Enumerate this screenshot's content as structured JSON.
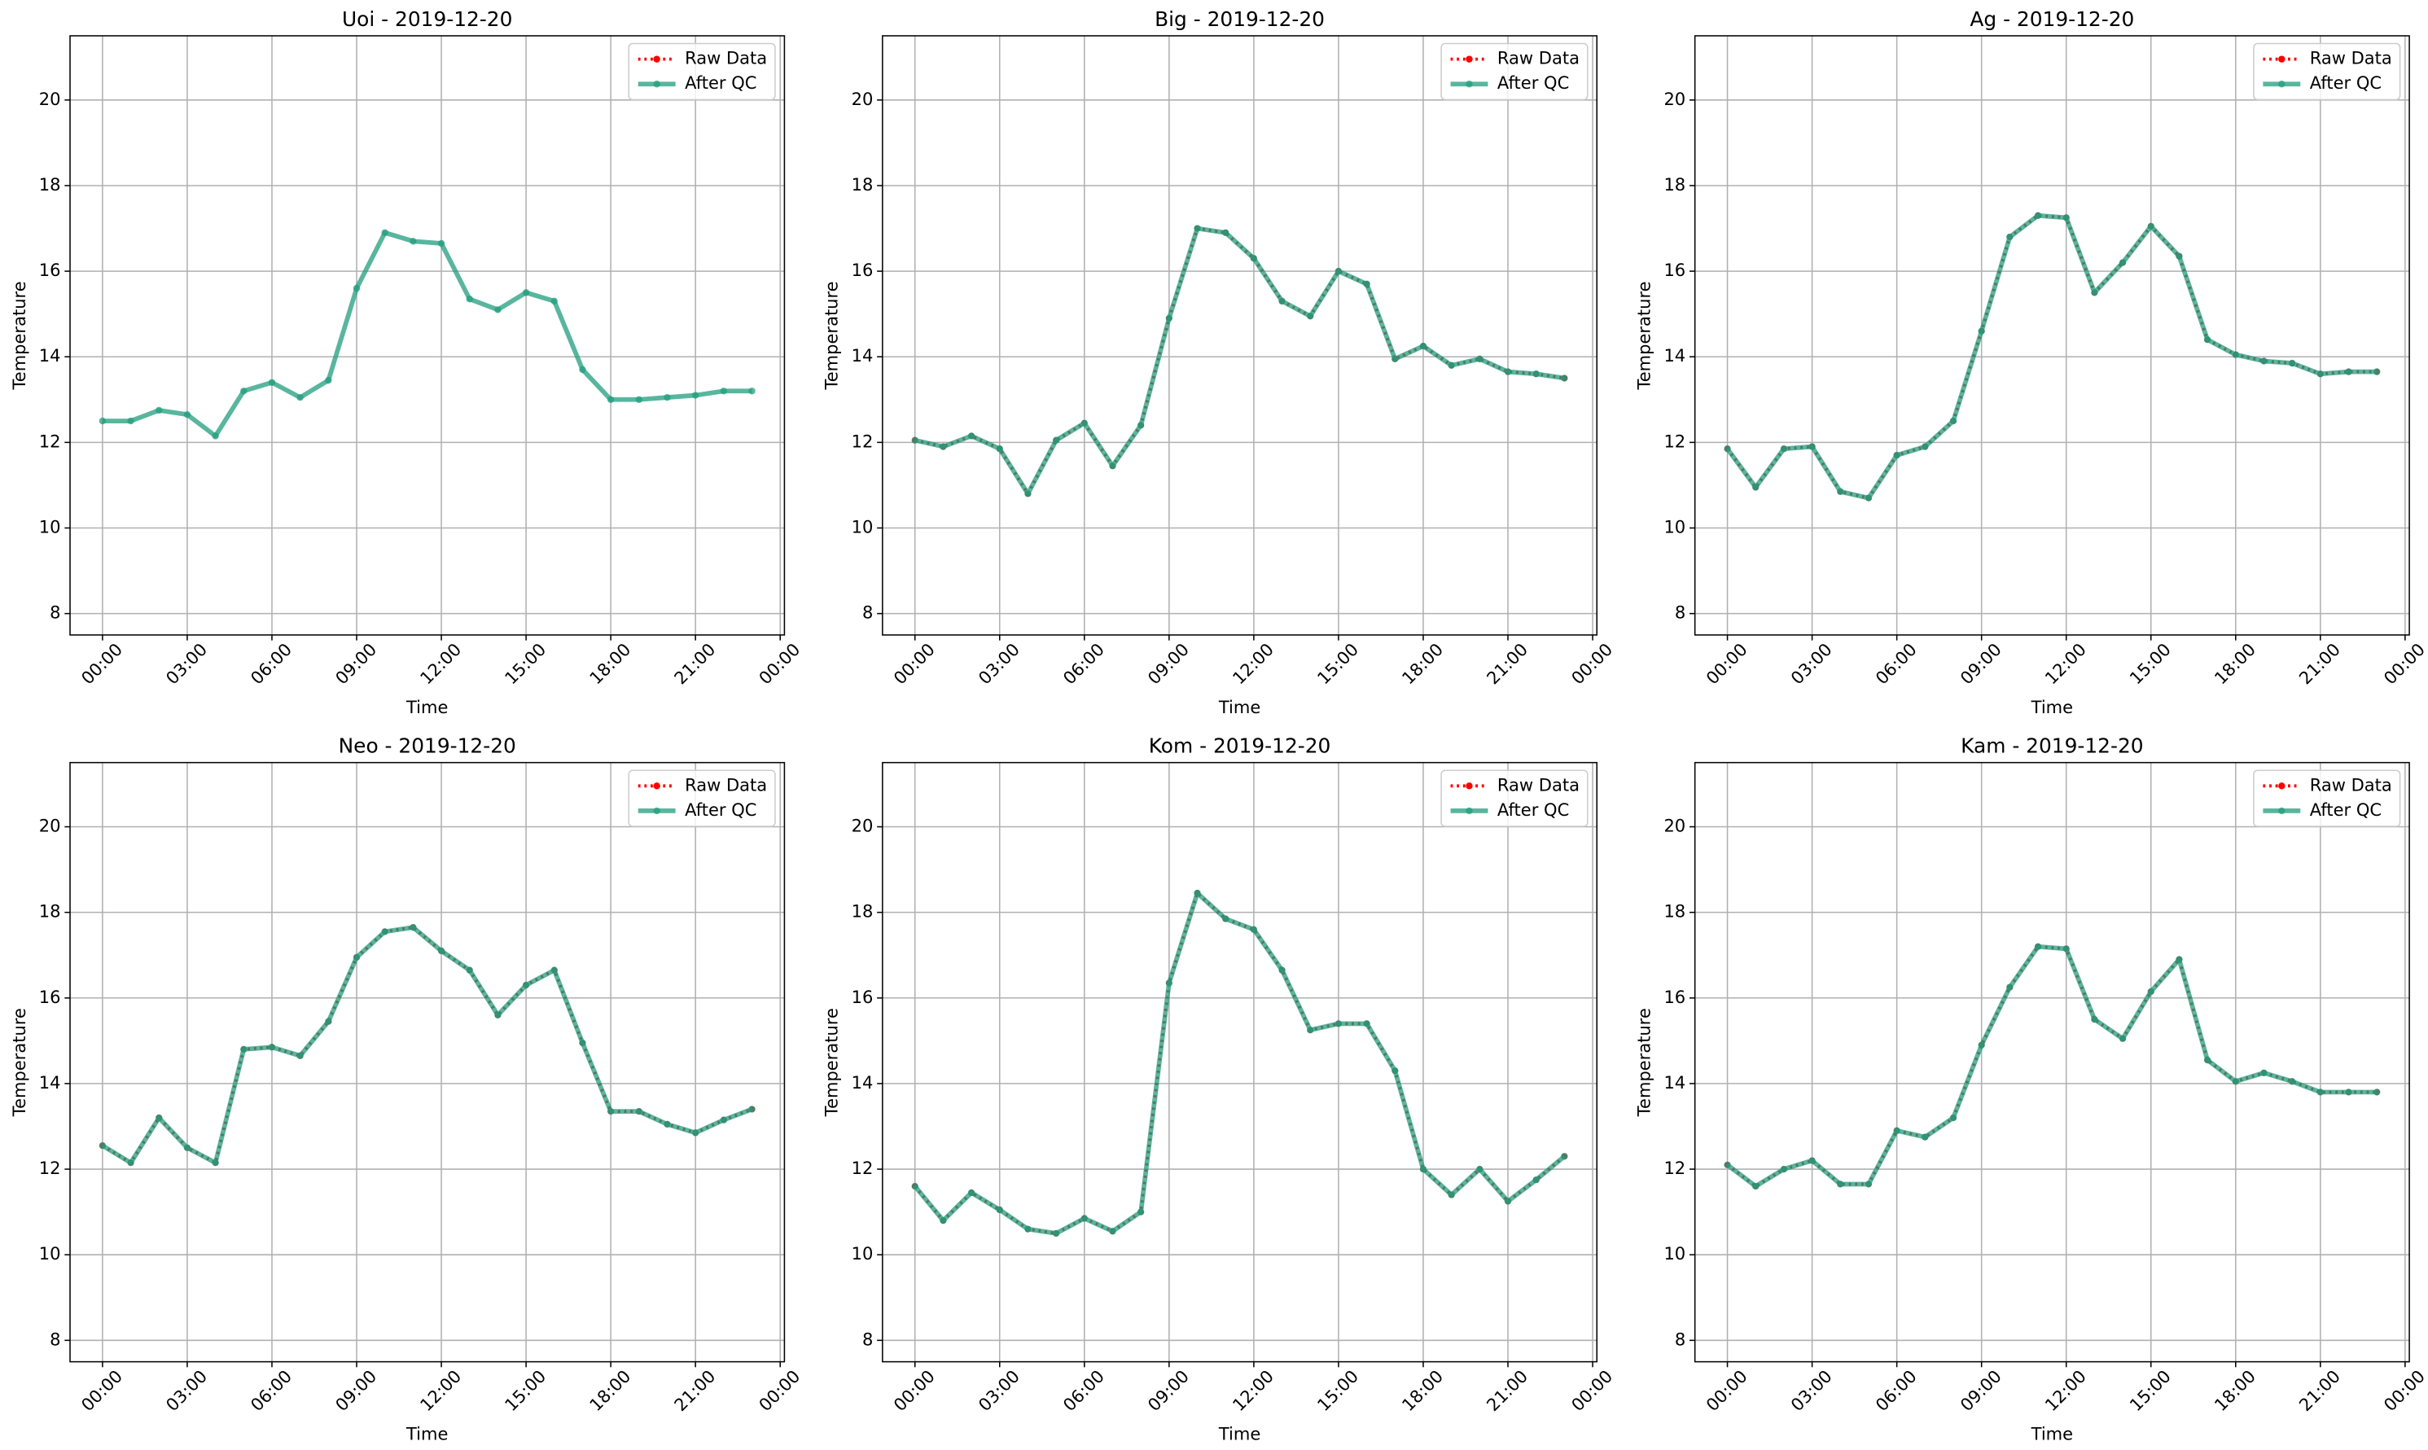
{
  "chart_data": [
    {
      "type": "line",
      "title": "Uoi - 2019-12-20",
      "xlabel": "Time",
      "ylabel": "Temperature",
      "x": [
        0,
        1,
        2,
        3,
        4,
        5,
        6,
        7,
        8,
        9,
        10,
        11,
        12,
        13,
        14,
        15,
        16,
        17,
        18,
        19,
        20,
        21,
        22,
        23
      ],
      "xlim": [
        -1.15,
        24.15
      ],
      "xticks": [
        {
          "value": 0,
          "label": "00:00"
        },
        {
          "value": 3,
          "label": "03:00"
        },
        {
          "value": 6,
          "label": "06:00"
        },
        {
          "value": 9,
          "label": "09:00"
        },
        {
          "value": 12,
          "label": "12:00"
        },
        {
          "value": 15,
          "label": "15:00"
        },
        {
          "value": 18,
          "label": "18:00"
        },
        {
          "value": 21,
          "label": "21:00"
        },
        {
          "value": 24,
          "label": "00:00"
        }
      ],
      "ylim": [
        7.5,
        21.5
      ],
      "yticks": [
        8,
        10,
        12,
        14,
        16,
        18,
        20
      ],
      "grid": true,
      "legend": "upper right",
      "series": [
        {
          "name": "Raw Data",
          "color": "#ff0000",
          "values": [
            null,
            null,
            null,
            null,
            null,
            null,
            null,
            null,
            null,
            null,
            null,
            null,
            null,
            null,
            null,
            null,
            null,
            null,
            null,
            null,
            null,
            null,
            null,
            null
          ]
        },
        {
          "name": "After QC",
          "color": "#229e7e",
          "values": [
            12.5,
            12.5,
            12.75,
            12.65,
            12.15,
            13.2,
            13.4,
            13.05,
            13.45,
            15.6,
            16.9,
            16.7,
            16.65,
            15.35,
            15.1,
            15.5,
            15.3,
            13.7,
            13.0,
            13.0,
            13.05,
            13.1,
            13.2,
            13.2
          ]
        }
      ]
    },
    {
      "type": "line",
      "title": "Big - 2019-12-20",
      "xlabel": "Time",
      "ylabel": "Temperature",
      "x": [
        0,
        1,
        2,
        3,
        4,
        5,
        6,
        7,
        8,
        9,
        10,
        11,
        12,
        13,
        14,
        15,
        16,
        17,
        18,
        19,
        20,
        21,
        22,
        23
      ],
      "xlim": [
        -1.15,
        24.15
      ],
      "xticks": [
        {
          "value": 0,
          "label": "00:00"
        },
        {
          "value": 3,
          "label": "03:00"
        },
        {
          "value": 6,
          "label": "06:00"
        },
        {
          "value": 9,
          "label": "09:00"
        },
        {
          "value": 12,
          "label": "12:00"
        },
        {
          "value": 15,
          "label": "15:00"
        },
        {
          "value": 18,
          "label": "18:00"
        },
        {
          "value": 21,
          "label": "21:00"
        },
        {
          "value": 24,
          "label": "00:00"
        }
      ],
      "ylim": [
        7.5,
        21.5
      ],
      "yticks": [
        8,
        10,
        12,
        14,
        16,
        18,
        20
      ],
      "grid": true,
      "legend": "upper right",
      "series": [
        {
          "name": "Raw Data",
          "color": "#ff0000",
          "values": [
            12.05,
            11.9,
            12.15,
            11.85,
            10.8,
            12.05,
            12.45,
            11.45,
            12.4,
            14.9,
            17.0,
            16.9,
            16.3,
            15.3,
            14.95,
            16.0,
            15.7,
            13.95,
            14.25,
            13.8,
            13.95,
            13.65,
            13.6,
            13.5
          ]
        },
        {
          "name": "After QC",
          "color": "#229e7e",
          "values": [
            12.05,
            11.9,
            12.15,
            11.85,
            10.8,
            12.05,
            12.45,
            11.45,
            12.4,
            14.9,
            17.0,
            16.9,
            16.3,
            15.3,
            14.95,
            16.0,
            15.7,
            13.95,
            14.25,
            13.8,
            13.95,
            13.65,
            13.6,
            13.5
          ]
        }
      ]
    },
    {
      "type": "line",
      "title": "Ag - 2019-12-20",
      "xlabel": "Time",
      "ylabel": "Temperature",
      "x": [
        0,
        1,
        2,
        3,
        4,
        5,
        6,
        7,
        8,
        9,
        10,
        11,
        12,
        13,
        14,
        15,
        16,
        17,
        18,
        19,
        20,
        21,
        22,
        23
      ],
      "xlim": [
        -1.15,
        24.15
      ],
      "xticks": [
        {
          "value": 0,
          "label": "00:00"
        },
        {
          "value": 3,
          "label": "03:00"
        },
        {
          "value": 6,
          "label": "06:00"
        },
        {
          "value": 9,
          "label": "09:00"
        },
        {
          "value": 12,
          "label": "12:00"
        },
        {
          "value": 15,
          "label": "15:00"
        },
        {
          "value": 18,
          "label": "18:00"
        },
        {
          "value": 21,
          "label": "21:00"
        },
        {
          "value": 24,
          "label": "00:00"
        }
      ],
      "ylim": [
        7.5,
        21.5
      ],
      "yticks": [
        8,
        10,
        12,
        14,
        16,
        18,
        20
      ],
      "grid": true,
      "legend": "upper right",
      "series": [
        {
          "name": "Raw Data",
          "color": "#ff0000",
          "values": [
            11.85,
            10.95,
            11.85,
            11.9,
            10.85,
            10.7,
            11.7,
            11.9,
            12.5,
            14.6,
            16.8,
            17.3,
            17.25,
            15.5,
            16.2,
            17.05,
            16.35,
            14.4,
            14.05,
            13.9,
            13.85,
            13.6,
            13.65,
            13.65
          ]
        },
        {
          "name": "After QC",
          "color": "#229e7e",
          "values": [
            11.85,
            10.95,
            11.85,
            11.9,
            10.85,
            10.7,
            11.7,
            11.9,
            12.5,
            14.6,
            16.8,
            17.3,
            17.25,
            15.5,
            16.2,
            17.05,
            16.35,
            14.4,
            14.05,
            13.9,
            13.85,
            13.6,
            13.65,
            13.65
          ]
        }
      ]
    },
    {
      "type": "line",
      "title": "Neo - 2019-12-20",
      "xlabel": "Time",
      "ylabel": "Temperature",
      "x": [
        0,
        1,
        2,
        3,
        4,
        5,
        6,
        7,
        8,
        9,
        10,
        11,
        12,
        13,
        14,
        15,
        16,
        17,
        18,
        19,
        20,
        21,
        22,
        23
      ],
      "xlim": [
        -1.15,
        24.15
      ],
      "xticks": [
        {
          "value": 0,
          "label": "00:00"
        },
        {
          "value": 3,
          "label": "03:00"
        },
        {
          "value": 6,
          "label": "06:00"
        },
        {
          "value": 9,
          "label": "09:00"
        },
        {
          "value": 12,
          "label": "12:00"
        },
        {
          "value": 15,
          "label": "15:00"
        },
        {
          "value": 18,
          "label": "18:00"
        },
        {
          "value": 21,
          "label": "21:00"
        },
        {
          "value": 24,
          "label": "00:00"
        }
      ],
      "ylim": [
        7.5,
        21.5
      ],
      "yticks": [
        8,
        10,
        12,
        14,
        16,
        18,
        20
      ],
      "grid": true,
      "legend": "upper right",
      "series": [
        {
          "name": "Raw Data",
          "color": "#ff0000",
          "values": [
            12.55,
            12.15,
            13.2,
            12.5,
            12.15,
            14.8,
            14.85,
            14.65,
            15.45,
            16.95,
            17.55,
            17.65,
            17.1,
            16.65,
            15.6,
            16.3,
            16.65,
            14.95,
            13.35,
            13.35,
            13.05,
            12.85,
            13.15,
            13.4
          ]
        },
        {
          "name": "After QC",
          "color": "#229e7e",
          "values": [
            12.55,
            12.15,
            13.2,
            12.5,
            12.15,
            14.8,
            14.85,
            14.65,
            15.45,
            16.95,
            17.55,
            17.65,
            17.1,
            16.65,
            15.6,
            16.3,
            16.65,
            14.95,
            13.35,
            13.35,
            13.05,
            12.85,
            13.15,
            13.4
          ]
        }
      ]
    },
    {
      "type": "line",
      "title": "Kom - 2019-12-20",
      "xlabel": "Time",
      "ylabel": "Temperature",
      "x": [
        0,
        1,
        2,
        3,
        4,
        5,
        6,
        7,
        8,
        9,
        10,
        11,
        12,
        13,
        14,
        15,
        16,
        17,
        18,
        19,
        20,
        21,
        22,
        23
      ],
      "xlim": [
        -1.15,
        24.15
      ],
      "xticks": [
        {
          "value": 0,
          "label": "00:00"
        },
        {
          "value": 3,
          "label": "03:00"
        },
        {
          "value": 6,
          "label": "06:00"
        },
        {
          "value": 9,
          "label": "09:00"
        },
        {
          "value": 12,
          "label": "12:00"
        },
        {
          "value": 15,
          "label": "15:00"
        },
        {
          "value": 18,
          "label": "18:00"
        },
        {
          "value": 21,
          "label": "21:00"
        },
        {
          "value": 24,
          "label": "00:00"
        }
      ],
      "ylim": [
        7.5,
        21.5
      ],
      "yticks": [
        8,
        10,
        12,
        14,
        16,
        18,
        20
      ],
      "grid": true,
      "legend": "upper right",
      "series": [
        {
          "name": "Raw Data",
          "color": "#ff0000",
          "values": [
            11.6,
            10.8,
            11.45,
            11.05,
            10.6,
            10.5,
            10.85,
            10.55,
            11.0,
            16.35,
            18.45,
            17.85,
            17.6,
            16.65,
            15.25,
            15.4,
            15.4,
            14.3,
            12.0,
            11.4,
            12.0,
            11.25,
            11.75,
            12.3
          ]
        },
        {
          "name": "After QC",
          "color": "#229e7e",
          "values": [
            11.6,
            10.8,
            11.45,
            11.05,
            10.6,
            10.5,
            10.85,
            10.55,
            11.0,
            16.35,
            18.45,
            17.85,
            17.6,
            16.65,
            15.25,
            15.4,
            15.4,
            14.3,
            12.0,
            11.4,
            12.0,
            11.25,
            11.75,
            12.3
          ]
        }
      ]
    },
    {
      "type": "line",
      "title": "Kam - 2019-12-20",
      "xlabel": "Time",
      "ylabel": "Temperature",
      "x": [
        0,
        1,
        2,
        3,
        4,
        5,
        6,
        7,
        8,
        9,
        10,
        11,
        12,
        13,
        14,
        15,
        16,
        17,
        18,
        19,
        20,
        21,
        22,
        23
      ],
      "xlim": [
        -1.15,
        24.15
      ],
      "xticks": [
        {
          "value": 0,
          "label": "00:00"
        },
        {
          "value": 3,
          "label": "03:00"
        },
        {
          "value": 6,
          "label": "06:00"
        },
        {
          "value": 9,
          "label": "09:00"
        },
        {
          "value": 12,
          "label": "12:00"
        },
        {
          "value": 15,
          "label": "15:00"
        },
        {
          "value": 18,
          "label": "18:00"
        },
        {
          "value": 21,
          "label": "21:00"
        },
        {
          "value": 24,
          "label": "00:00"
        }
      ],
      "ylim": [
        7.5,
        21.5
      ],
      "yticks": [
        8,
        10,
        12,
        14,
        16,
        18,
        20
      ],
      "grid": true,
      "legend": "upper right",
      "series": [
        {
          "name": "Raw Data",
          "color": "#ff0000",
          "values": [
            12.1,
            11.6,
            12.0,
            12.2,
            11.65,
            11.65,
            12.9,
            12.75,
            13.2,
            14.9,
            16.25,
            17.2,
            17.15,
            15.5,
            15.05,
            16.15,
            16.9,
            14.55,
            14.05,
            14.25,
            14.05,
            13.8,
            13.8,
            13.8
          ]
        },
        {
          "name": "After QC",
          "color": "#229e7e",
          "values": [
            12.1,
            11.6,
            12.0,
            12.2,
            11.65,
            11.65,
            12.9,
            12.75,
            13.2,
            14.9,
            16.25,
            17.2,
            17.15,
            15.5,
            15.05,
            16.15,
            16.9,
            14.55,
            14.05,
            14.25,
            14.05,
            13.8,
            13.8,
            13.8
          ]
        }
      ]
    }
  ]
}
